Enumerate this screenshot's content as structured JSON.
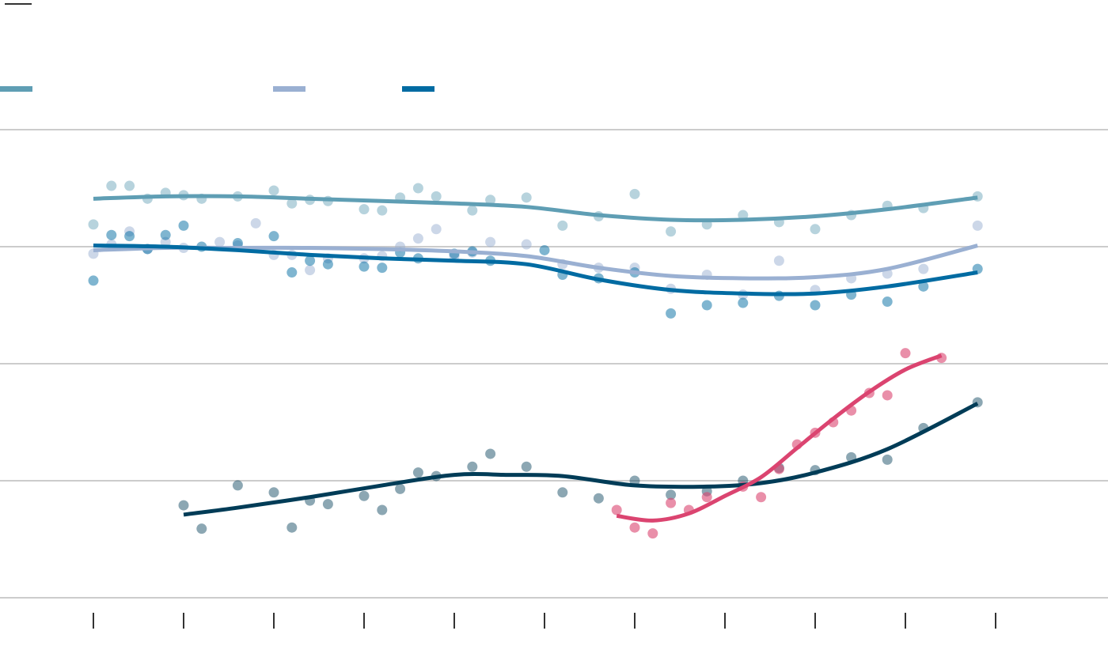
{
  "chart_data": {
    "type": "scatter",
    "title": "",
    "xlabel": "",
    "ylabel": "",
    "grid": true,
    "legend": "top-left",
    "xlim": [
      -2,
      53
    ],
    "ylim": [
      0,
      4
    ],
    "x_ticks": [
      0,
      5,
      10,
      15,
      20,
      25,
      30,
      35,
      40,
      45,
      50
    ],
    "y_gridlines": [
      0,
      1,
      2,
      3,
      4
    ],
    "series": [
      {
        "color": "#5F9EB4",
        "opacity": 0.45,
        "in_legend": true,
        "points": [
          [
            0,
            3.19
          ],
          [
            1,
            3.52
          ],
          [
            2,
            3.52
          ],
          [
            3,
            3.41
          ],
          [
            4,
            3.46
          ],
          [
            5,
            3.44
          ],
          [
            6,
            3.41
          ],
          [
            8,
            3.43
          ],
          [
            10,
            3.48
          ],
          [
            11,
            3.37
          ],
          [
            12,
            3.4
          ],
          [
            13,
            3.39
          ],
          [
            15,
            3.32
          ],
          [
            16,
            3.31
          ],
          [
            17,
            3.42
          ],
          [
            18,
            3.5
          ],
          [
            19,
            3.43
          ],
          [
            21,
            3.31
          ],
          [
            22,
            3.4
          ],
          [
            24,
            3.42
          ],
          [
            26,
            3.18
          ],
          [
            28,
            3.26
          ],
          [
            30,
            3.45
          ],
          [
            32,
            3.13
          ],
          [
            34,
            3.19
          ],
          [
            36,
            3.27
          ],
          [
            38,
            3.21
          ],
          [
            40,
            3.15
          ],
          [
            42,
            3.27
          ],
          [
            44,
            3.35
          ],
          [
            46,
            3.33
          ],
          [
            49,
            3.43
          ]
        ],
        "trend": [
          [
            0,
            3.41
          ],
          [
            4,
            3.43
          ],
          [
            8,
            3.43
          ],
          [
            12,
            3.41
          ],
          [
            16,
            3.39
          ],
          [
            20,
            3.37
          ],
          [
            24,
            3.34
          ],
          [
            28,
            3.27
          ],
          [
            32,
            3.23
          ],
          [
            36,
            3.23
          ],
          [
            40,
            3.26
          ],
          [
            44,
            3.32
          ],
          [
            49,
            3.42
          ]
        ]
      },
      {
        "color": "#9AB0D2",
        "opacity": 0.5,
        "in_legend": true,
        "points": [
          [
            0,
            2.94
          ],
          [
            1,
            3.02
          ],
          [
            2,
            3.13
          ],
          [
            3,
            2.98
          ],
          [
            4,
            3.04
          ],
          [
            5,
            2.99
          ],
          [
            7,
            3.04
          ],
          [
            8,
            3.01
          ],
          [
            9,
            3.2
          ],
          [
            10,
            2.93
          ],
          [
            11,
            2.93
          ],
          [
            12,
            2.8
          ],
          [
            13,
            2.9
          ],
          [
            15,
            2.9
          ],
          [
            16,
            2.92
          ],
          [
            17,
            3.0
          ],
          [
            18,
            3.07
          ],
          [
            19,
            3.15
          ],
          [
            20,
            2.92
          ],
          [
            21,
            2.95
          ],
          [
            22,
            3.04
          ],
          [
            24,
            3.02
          ],
          [
            26,
            2.85
          ],
          [
            28,
            2.82
          ],
          [
            30,
            2.82
          ],
          [
            32,
            2.64
          ],
          [
            34,
            2.76
          ],
          [
            36,
            2.59
          ],
          [
            38,
            2.88
          ],
          [
            40,
            2.63
          ],
          [
            42,
            2.73
          ],
          [
            44,
            2.77
          ],
          [
            46,
            2.81
          ],
          [
            49,
            3.18
          ]
        ],
        "trend": [
          [
            0,
            2.97
          ],
          [
            4,
            2.99
          ],
          [
            8,
            2.99
          ],
          [
            12,
            2.99
          ],
          [
            16,
            2.98
          ],
          [
            20,
            2.96
          ],
          [
            24,
            2.92
          ],
          [
            28,
            2.82
          ],
          [
            32,
            2.75
          ],
          [
            36,
            2.73
          ],
          [
            40,
            2.74
          ],
          [
            44,
            2.81
          ],
          [
            49,
            3.01
          ]
        ]
      },
      {
        "color": "#006BA2",
        "opacity": 0.5,
        "in_legend": true,
        "points": [
          [
            0,
            2.71
          ],
          [
            1,
            3.1
          ],
          [
            2,
            3.09
          ],
          [
            3,
            2.98
          ],
          [
            4,
            3.1
          ],
          [
            5,
            3.18
          ],
          [
            6,
            3.0
          ],
          [
            8,
            3.03
          ],
          [
            10,
            3.09
          ],
          [
            11,
            2.78
          ],
          [
            12,
            2.88
          ],
          [
            13,
            2.85
          ],
          [
            15,
            2.83
          ],
          [
            16,
            2.82
          ],
          [
            17,
            2.95
          ],
          [
            18,
            2.9
          ],
          [
            20,
            2.94
          ],
          [
            21,
            2.96
          ],
          [
            22,
            2.88
          ],
          [
            25,
            2.97
          ],
          [
            26,
            2.76
          ],
          [
            28,
            2.73
          ],
          [
            30,
            2.78
          ],
          [
            32,
            2.43
          ],
          [
            34,
            2.5
          ],
          [
            36,
            2.52
          ],
          [
            38,
            2.58
          ],
          [
            40,
            2.5
          ],
          [
            42,
            2.59
          ],
          [
            44,
            2.53
          ],
          [
            46,
            2.66
          ],
          [
            49,
            2.81
          ]
        ],
        "trend": [
          [
            0,
            3.01
          ],
          [
            4,
            3.0
          ],
          [
            8,
            2.97
          ],
          [
            12,
            2.93
          ],
          [
            16,
            2.9
          ],
          [
            20,
            2.88
          ],
          [
            24,
            2.85
          ],
          [
            28,
            2.72
          ],
          [
            32,
            2.63
          ],
          [
            36,
            2.6
          ],
          [
            40,
            2.6
          ],
          [
            44,
            2.66
          ],
          [
            49,
            2.78
          ]
        ]
      },
      {
        "color": "#003C57",
        "opacity": 0.45,
        "in_legend": false,
        "points": [
          [
            5,
            0.79
          ],
          [
            6,
            0.59
          ],
          [
            8,
            0.96
          ],
          [
            10,
            0.9
          ],
          [
            11,
            0.6
          ],
          [
            12,
            0.83
          ],
          [
            13,
            0.8
          ],
          [
            15,
            0.87
          ],
          [
            16,
            0.75
          ],
          [
            17,
            0.93
          ],
          [
            18,
            1.07
          ],
          [
            19,
            1.04
          ],
          [
            21,
            1.12
          ],
          [
            22,
            1.23
          ],
          [
            24,
            1.12
          ],
          [
            26,
            0.9
          ],
          [
            28,
            0.85
          ],
          [
            30,
            1.0
          ],
          [
            32,
            0.88
          ],
          [
            34,
            0.91
          ],
          [
            36,
            1.0
          ],
          [
            38,
            1.11
          ],
          [
            40,
            1.09
          ],
          [
            42,
            1.2
          ],
          [
            44,
            1.18
          ],
          [
            46,
            1.45
          ],
          [
            49,
            1.67
          ]
        ],
        "trend": [
          [
            5,
            0.71
          ],
          [
            8,
            0.77
          ],
          [
            12,
            0.86
          ],
          [
            16,
            0.96
          ],
          [
            20,
            1.05
          ],
          [
            23,
            1.05
          ],
          [
            26,
            1.04
          ],
          [
            30,
            0.96
          ],
          [
            34,
            0.95
          ],
          [
            37,
            0.98
          ],
          [
            40,
            1.07
          ],
          [
            44,
            1.27
          ],
          [
            49,
            1.66
          ]
        ]
      },
      {
        "color": "#DB4470",
        "opacity": 0.6,
        "in_legend": false,
        "points": [
          [
            29,
            0.75
          ],
          [
            30,
            0.6
          ],
          [
            31,
            0.55
          ],
          [
            32,
            0.81
          ],
          [
            33,
            0.75
          ],
          [
            34,
            0.86
          ],
          [
            36,
            0.95
          ],
          [
            37,
            0.86
          ],
          [
            38,
            1.1
          ],
          [
            39,
            1.31
          ],
          [
            40,
            1.41
          ],
          [
            41,
            1.5
          ],
          [
            42,
            1.6
          ],
          [
            43,
            1.75
          ],
          [
            44,
            1.73
          ],
          [
            45,
            2.09
          ],
          [
            47,
            2.05
          ]
        ],
        "trend": [
          [
            29,
            0.7
          ],
          [
            31,
            0.66
          ],
          [
            33,
            0.72
          ],
          [
            35,
            0.87
          ],
          [
            37,
            1.03
          ],
          [
            39,
            1.28
          ],
          [
            41,
            1.53
          ],
          [
            43,
            1.76
          ],
          [
            45,
            1.95
          ],
          [
            47,
            2.07
          ]
        ]
      }
    ]
  }
}
